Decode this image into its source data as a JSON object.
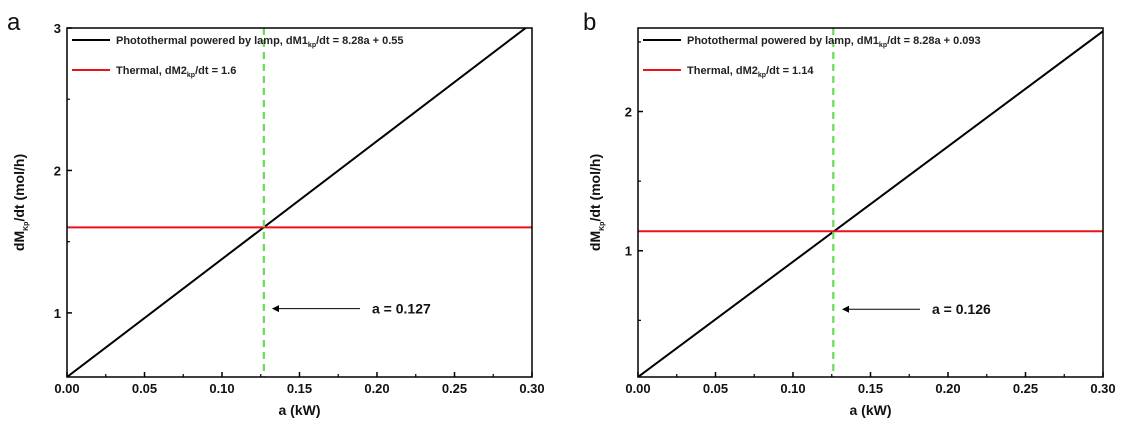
{
  "chart_data": [
    {
      "panel_label": "a",
      "type": "line",
      "xlabel": "a (kW)",
      "ylabel_main": "dM",
      "ylabel_sub": "Kp",
      "ylabel_tail": "/dt (mol/h)",
      "xlim": [
        0,
        0.3
      ],
      "ylim": [
        0.55,
        3.0
      ],
      "xticks": [
        "0.00",
        "0.05",
        "0.10",
        "0.15",
        "0.20",
        "0.25",
        "0.30"
      ],
      "yticks": [
        "1",
        "2",
        "3"
      ],
      "series": [
        {
          "legend_main": "Photothermal powered by  lamp, dM1",
          "legend_sub": "kp",
          "legend_tail": "/dt = 8.28a + 0.55",
          "color": "#000000",
          "x": [
            0,
            0.3
          ],
          "y": [
            0.55,
            3.034
          ]
        },
        {
          "legend_main": "Thermal, dM2",
          "legend_sub": "kp",
          "legend_tail": "/dt = 1.6",
          "color": "#e8141c",
          "x": [
            0,
            0.3
          ],
          "y": [
            1.6,
            1.6
          ]
        }
      ],
      "vline": {
        "x": 0.127,
        "color": "#66dd55",
        "style": "dashed"
      },
      "annotation": {
        "text": "a = 0.127",
        "y": 1.03
      },
      "grid": false,
      "legend_position": "top-left"
    },
    {
      "panel_label": "b",
      "type": "line",
      "xlabel": "a (kW)",
      "ylabel_main": "dM",
      "ylabel_sub": "Kp",
      "ylabel_tail": "/dt (mol/h)",
      "xlim": [
        0,
        0.3
      ],
      "ylim": [
        0.093,
        2.6
      ],
      "xticks": [
        "0.00",
        "0.05",
        "0.10",
        "0.15",
        "0.20",
        "0.25",
        "0.30"
      ],
      "yticks": [
        "1",
        "2"
      ],
      "series": [
        {
          "legend_main": "Photothermal powered by  lamp, dM1",
          "legend_sub": "kp",
          "legend_tail": "/dt = 8.28a + 0.093",
          "color": "#000000",
          "x": [
            0,
            0.3
          ],
          "y": [
            0.093,
            2.577
          ]
        },
        {
          "legend_main": "Thermal, dM2",
          "legend_sub": "kp",
          "legend_tail": "/dt = 1.14",
          "color": "#e8141c",
          "x": [
            0,
            0.3
          ],
          "y": [
            1.14,
            1.14
          ]
        }
      ],
      "vline": {
        "x": 0.126,
        "color": "#66dd55",
        "style": "dashed"
      },
      "annotation": {
        "text": "a = 0.126",
        "y": 0.58
      },
      "grid": false,
      "legend_position": "top-left"
    }
  ]
}
